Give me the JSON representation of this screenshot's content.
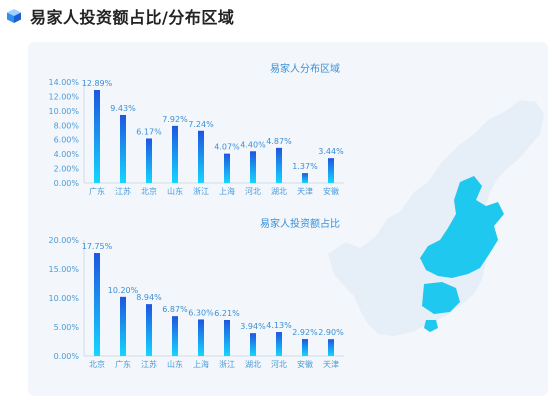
{
  "header": {
    "title": "易家人投资额占比/分布区域",
    "icon": "cube-icon"
  },
  "colors": {
    "bar_top": "#1e56e0",
    "bar_bottom": "#15d6ff",
    "map_base": "#e6eef7",
    "map_highlight": "#1ec8ee",
    "accent_text": "#3a8fd6"
  },
  "chart_data": [
    {
      "type": "bar",
      "title": "易家人分布区域",
      "categories": [
        "广东",
        "江苏",
        "北京",
        "山东",
        "浙江",
        "上海",
        "河北",
        "湖北",
        "天津",
        "安徽"
      ],
      "values": [
        12.89,
        9.43,
        6.17,
        7.92,
        7.24,
        4.07,
        4.4,
        4.87,
        1.37,
        3.44
      ],
      "value_labels": [
        "12.89%",
        "9.43%",
        "6.17%",
        "7.92%",
        "7.24%",
        "4.07%",
        "4.40%",
        "4.87%",
        "1.37%",
        "3.44%"
      ],
      "y_ticks": [
        "0.00%",
        "2.00%",
        "4.00%",
        "6.00%",
        "8.00%",
        "10.00%",
        "12.00%",
        "14.00%"
      ],
      "ylim": [
        0,
        14
      ],
      "grid": false
    },
    {
      "type": "bar",
      "title": "易家人投资额占比",
      "categories": [
        "北京",
        "广东",
        "江苏",
        "山东",
        "上海",
        "浙江",
        "湖北",
        "河北",
        "安徽",
        "天津"
      ],
      "values": [
        17.75,
        10.2,
        8.94,
        6.87,
        6.3,
        6.21,
        3.94,
        4.13,
        2.92,
        2.9
      ],
      "value_labels": [
        "17.75%",
        "10.20%",
        "8.94%",
        "6.87%",
        "6.30%",
        "6.21%",
        "3.94%",
        "4.13%",
        "2.92%",
        "2.90%"
      ],
      "y_ticks": [
        "0.00%",
        "5.00%",
        "10.00%",
        "15.00%",
        "20.00%"
      ],
      "ylim": [
        0,
        20
      ],
      "grid": false
    }
  ]
}
